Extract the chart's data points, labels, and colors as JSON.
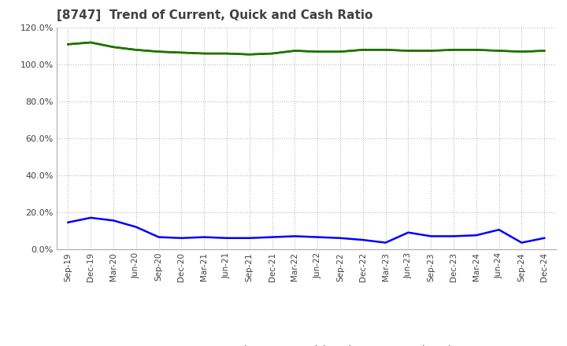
{
  "title": "[8747]  Trend of Current, Quick and Cash Ratio",
  "x_labels": [
    "Sep-19",
    "Dec-19",
    "Mar-20",
    "Jun-20",
    "Sep-20",
    "Dec-20",
    "Mar-21",
    "Jun-21",
    "Sep-21",
    "Dec-21",
    "Mar-22",
    "Jun-22",
    "Sep-22",
    "Dec-22",
    "Mar-23",
    "Jun-23",
    "Sep-23",
    "Dec-23",
    "Mar-24",
    "Jun-24",
    "Sep-24",
    "Dec-24"
  ],
  "current_ratio": [
    111.0,
    112.0,
    109.5,
    108.0,
    107.0,
    106.5,
    106.0,
    106.0,
    105.5,
    106.0,
    107.5,
    107.0,
    107.0,
    108.0,
    108.0,
    107.5,
    107.5,
    108.0,
    108.0,
    107.5,
    107.0,
    107.5
  ],
  "quick_ratio": [
    111.0,
    112.0,
    109.5,
    108.0,
    107.0,
    106.5,
    106.0,
    106.0,
    105.5,
    106.0,
    107.5,
    107.0,
    107.0,
    108.0,
    108.0,
    107.5,
    107.5,
    108.0,
    108.0,
    107.5,
    107.0,
    107.5
  ],
  "cash_ratio": [
    14.5,
    17.0,
    15.5,
    12.0,
    6.5,
    6.0,
    6.5,
    6.0,
    6.0,
    6.5,
    7.0,
    6.5,
    6.0,
    5.0,
    3.5,
    9.0,
    7.0,
    7.0,
    7.5,
    10.5,
    3.5,
    6.0
  ],
  "current_color": "#FF0000",
  "quick_color": "#008000",
  "cash_color": "#0000FF",
  "bg_color": "#FFFFFF",
  "grid_color": "#BBBBBB",
  "title_color": "#404040",
  "ylim": [
    0,
    120
  ],
  "yticks": [
    0,
    20,
    40,
    60,
    80,
    100,
    120
  ],
  "ytick_labels": [
    "0.0%",
    "20.0%",
    "40.0%",
    "60.0%",
    "80.0%",
    "100.0%",
    "120.0%"
  ]
}
